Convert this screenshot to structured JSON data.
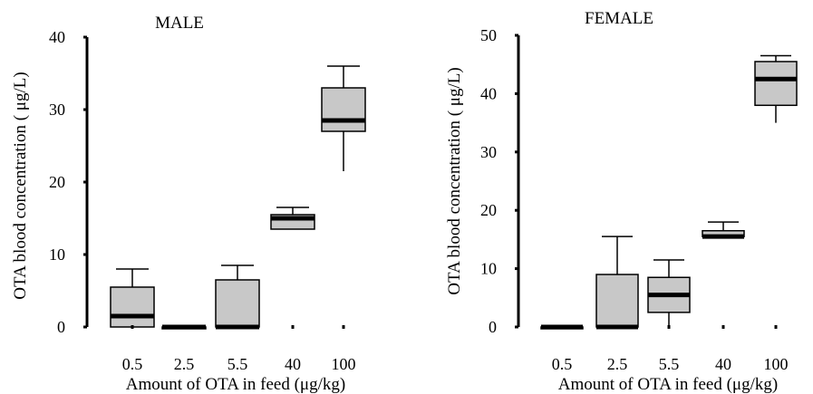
{
  "figure": {
    "background": "#ffffff",
    "box_fill": "#c8c8c8",
    "line_color": "#000000"
  },
  "chart_data": [
    {
      "type": "box",
      "title": "MALE",
      "xlabel": "Amount of OTA in feed (μg/kg)",
      "ylabel": "OTA blood concentration ( μg/L)",
      "ylim": [
        0,
        40
      ],
      "yticks": [
        "0",
        "10",
        "20",
        "30",
        "40"
      ],
      "categories": [
        "0.5",
        "2.5",
        "5.5",
        "40",
        "100"
      ],
      "series": [
        {
          "category": "0.5",
          "whisker_low": 0,
          "q1": 0,
          "median": 1.5,
          "q3": 5.5,
          "whisker_high": 8
        },
        {
          "category": "2.5",
          "whisker_low": 0,
          "q1": 0,
          "median": 0,
          "q3": 0,
          "whisker_high": 0
        },
        {
          "category": "5.5",
          "whisker_low": 0,
          "q1": 0,
          "median": 0,
          "q3": 6.5,
          "whisker_high": 8.5
        },
        {
          "category": "40",
          "whisker_low": 13.5,
          "q1": 13.5,
          "median": 15,
          "q3": 15.5,
          "whisker_high": 16.5
        },
        {
          "category": "100",
          "whisker_low": 21.5,
          "q1": 27,
          "median": 28.5,
          "q3": 33,
          "whisker_high": 36
        }
      ]
    },
    {
      "type": "box",
      "title": "FEMALE",
      "xlabel": "Amount of OTA in feed (μg/kg)",
      "ylabel": "OTA blood concentration ( μg/L)",
      "ylim": [
        0,
        50
      ],
      "yticks": [
        "0",
        "10",
        "20",
        "30",
        "40",
        "50"
      ],
      "categories": [
        "0.5",
        "2.5",
        "5.5",
        "40",
        "100"
      ],
      "series": [
        {
          "category": "0.5",
          "whisker_low": 0,
          "q1": 0,
          "median": 0,
          "q3": 0,
          "whisker_high": 0
        },
        {
          "category": "2.5",
          "whisker_low": 0,
          "q1": 0,
          "median": 0,
          "q3": 9,
          "whisker_high": 15.5
        },
        {
          "category": "5.5",
          "whisker_low": 0,
          "q1": 2.5,
          "median": 5.5,
          "q3": 8.5,
          "whisker_high": 11.5
        },
        {
          "category": "40",
          "whisker_low": 15.5,
          "q1": 15.5,
          "median": 15.5,
          "q3": 16.5,
          "whisker_high": 18
        },
        {
          "category": "100",
          "whisker_low": 35,
          "q1": 38,
          "median": 42.5,
          "q3": 45.5,
          "whisker_high": 46.5
        }
      ]
    }
  ]
}
